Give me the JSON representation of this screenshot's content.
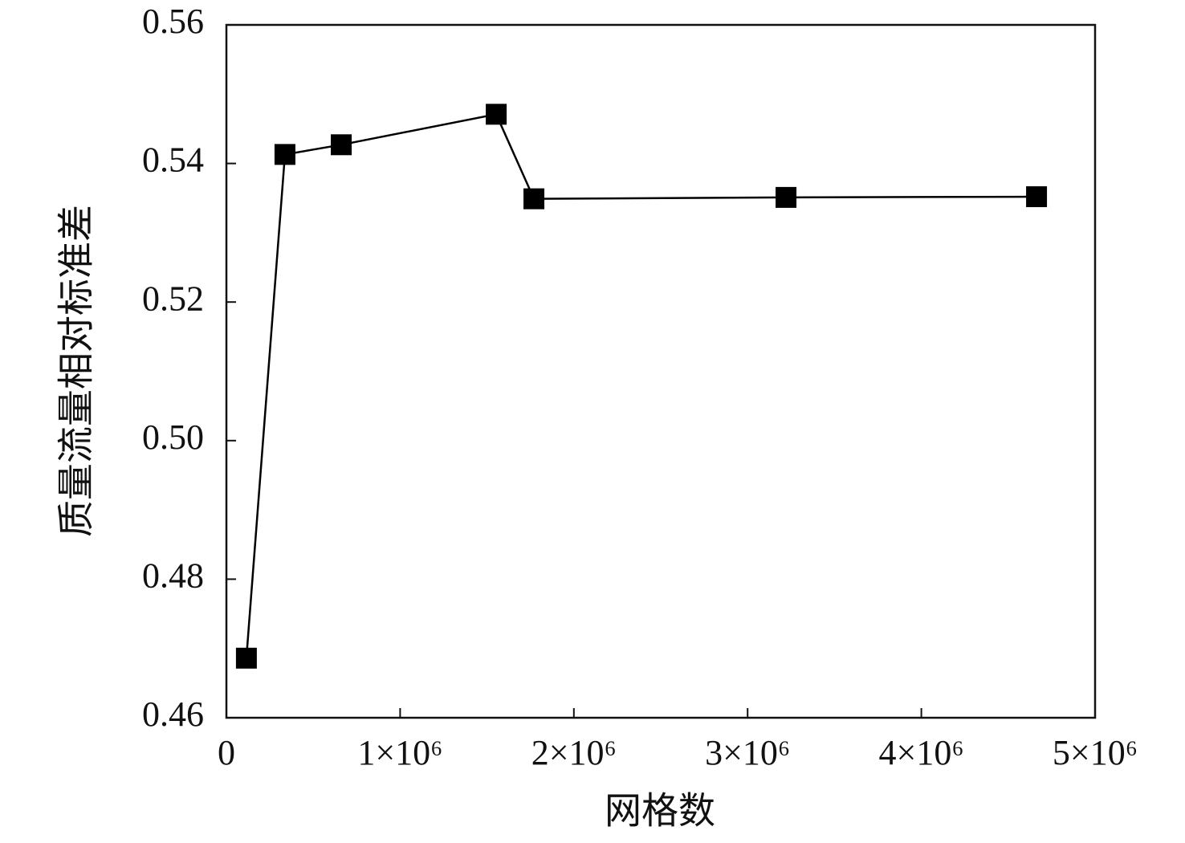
{
  "chart_data": {
    "type": "line",
    "x_label": "网格数",
    "y_label": "质量流量相对标准差",
    "x": [
      115000,
      337000,
      661000,
      1553000,
      1770000,
      3221000,
      4663000
    ],
    "values": [
      0.4686,
      0.5413,
      0.5427,
      0.5471,
      0.5349,
      0.5351,
      0.5352
    ],
    "color": "#000000",
    "marker": "square",
    "xlim": [
      0,
      5000000
    ],
    "xticks": [
      0,
      {
        "value": 1000000,
        "label": "1×10⁶"
      },
      {
        "value": 2000000,
        "label": "2×10⁶"
      },
      {
        "value": 3000000,
        "label": "3×10⁶"
      },
      {
        "value": 4000000,
        "label": "4×10⁶"
      },
      {
        "value": 5000000,
        "label": "5×10⁶"
      }
    ],
    "ylim": [
      0.46,
      0.56
    ],
    "yticks": [
      0.46,
      0.48,
      {
        "value": 0.5,
        "label": "0.50"
      },
      0.52,
      0.54,
      0.56
    ],
    "grid": false
  }
}
